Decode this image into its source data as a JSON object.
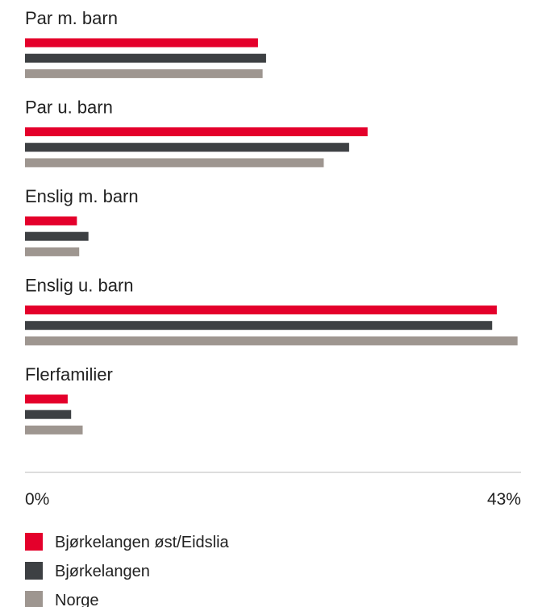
{
  "chart_data": {
    "type": "bar",
    "orientation": "horizontal",
    "categories": [
      "Par m. barn",
      "Par u. barn",
      "Enslig m. barn",
      "Enslig u. barn",
      "Flerfamilier"
    ],
    "series": [
      {
        "name": "Bjørkelangen øst/Eidslia",
        "color": "#e4002b",
        "values": [
          20.2,
          29.7,
          4.5,
          40.9,
          3.7
        ]
      },
      {
        "name": "Bjørkelangen",
        "color": "#3d4043",
        "values": [
          20.9,
          28.1,
          5.5,
          40.5,
          4.0
        ]
      },
      {
        "name": "Norge",
        "color": "#9e9690",
        "values": [
          20.6,
          25.9,
          4.7,
          42.7,
          5.0
        ]
      }
    ],
    "xlim": [
      0,
      43
    ],
    "tick_labels": [
      "0%",
      "43%"
    ],
    "legend_position": "bottom",
    "grid": false
  }
}
